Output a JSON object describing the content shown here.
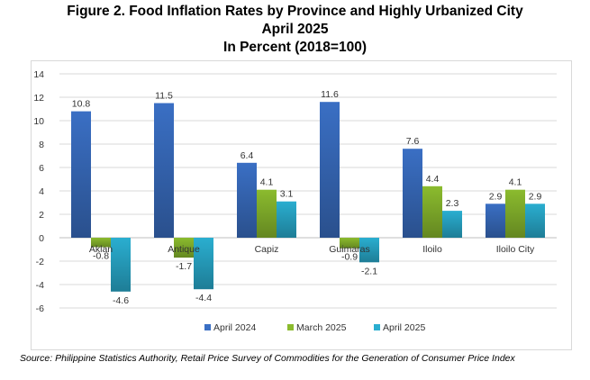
{
  "title": {
    "line1": "Figure 2.  Food Inflation Rates by Province and Highly Urbanized City",
    "line2": "April 2025",
    "line3": "In Percent (2018=100)"
  },
  "source": "Source: Philippine Statistics Authority, Retail Price Survey of Commodities for the Generation of Consumer Price Index",
  "chart_data": {
    "type": "bar",
    "title": "Figure 2.  Food Inflation Rates by Province and Highly Urbanized City April 2025 In Percent (2018=100)",
    "xlabel": "",
    "ylabel": "",
    "categories": [
      "Aklan",
      "Antique",
      "Capiz",
      "Guimaras",
      "Iloilo",
      "Iloilo City"
    ],
    "series": [
      {
        "name": "April 2024",
        "values": [
          10.8,
          11.5,
          6.4,
          11.6,
          7.6,
          2.9
        ],
        "color": "#3a6fc4"
      },
      {
        "name": "March 2025",
        "values": [
          -0.8,
          -1.7,
          4.1,
          -0.9,
          4.4,
          4.1
        ],
        "color": "#8bbb2e"
      },
      {
        "name": "April 2025",
        "values": [
          -4.6,
          -4.4,
          3.1,
          -2.1,
          2.3,
          2.9
        ],
        "color": "#2aaed0"
      }
    ],
    "value_labels": [
      [
        "10.8",
        "11.5",
        "6.4",
        "11.6",
        "7.6",
        "2.9"
      ],
      [
        "-0.8",
        "-1.7",
        "4.1",
        "-0.9",
        "4.4",
        "4.1"
      ],
      [
        "-4.6",
        "-4.4",
        "3.1",
        "-2.1",
        "2.3",
        "2.9"
      ]
    ],
    "ylim": [
      -6,
      14
    ],
    "yticks": [
      "-6",
      "-4",
      "-2",
      "0",
      "2",
      "4",
      "6",
      "8",
      "10",
      "12",
      "14"
    ],
    "grid": true,
    "legend_position": "bottom"
  }
}
